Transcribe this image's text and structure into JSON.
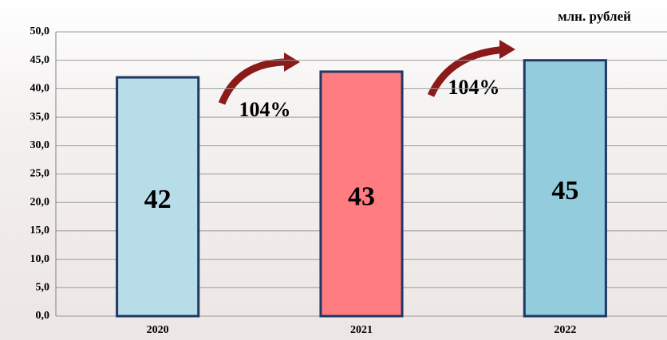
{
  "chart_data": {
    "type": "bar",
    "unit_label": "млн. рублей",
    "categories": [
      "2020",
      "2021",
      "2022"
    ],
    "values": [
      42,
      43,
      45
    ],
    "colors": [
      "#b7dde8",
      "#ff7c80",
      "#93cddd"
    ],
    "ylim": [
      0,
      50
    ],
    "yticks": [
      {
        "value": 0,
        "label": "0,0"
      },
      {
        "value": 5,
        "label": "5,0"
      },
      {
        "value": 10,
        "label": "10,0"
      },
      {
        "value": 15,
        "label": "15,0"
      },
      {
        "value": 20,
        "label": "20,0"
      },
      {
        "value": 25,
        "label": "25,0"
      },
      {
        "value": 30,
        "label": "30,0"
      },
      {
        "value": 35,
        "label": "35,0"
      },
      {
        "value": 40,
        "label": "40,0"
      },
      {
        "value": 45,
        "label": "45,0"
      },
      {
        "value": 50,
        "label": "50,0"
      }
    ],
    "grid": true,
    "annotations": [
      "104%",
      "104%"
    ]
  }
}
